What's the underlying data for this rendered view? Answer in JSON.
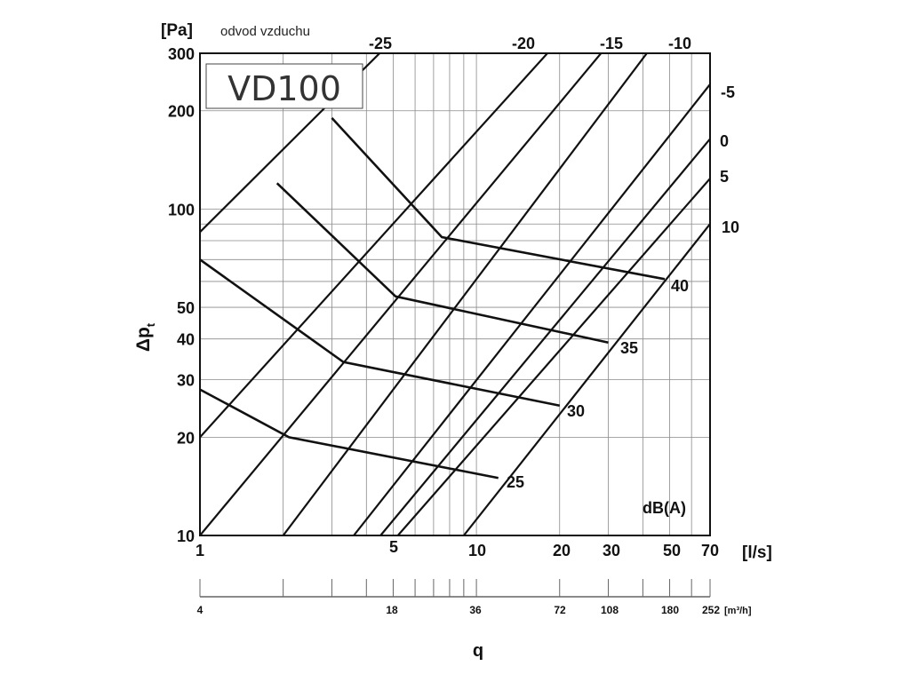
{
  "subtitle": "odvod vzduchu",
  "model": "VD100",
  "y_unit": "[Pa]",
  "y_label_main": "Δp",
  "y_label_sub": "t",
  "x_unit_ls": "[l/s]",
  "x_unit_m3h": "[m³/h]",
  "x_label": "q",
  "db_unit": "dB(A)",
  "chart_data": {
    "type": "line",
    "x_scale": "log",
    "y_scale": "log",
    "xlim": [
      1,
      70
    ],
    "ylim": [
      10,
      300
    ],
    "grid": true,
    "x_ticks_ls": [
      "1",
      "5",
      "10",
      "20",
      "30",
      "50",
      "70"
    ],
    "x_ticks_m3h": [
      "4",
      "18",
      "36",
      "72",
      "108",
      "180",
      "252"
    ],
    "y_ticks": [
      "10",
      "20",
      "30",
      "40",
      "50",
      "100",
      "200",
      "300"
    ],
    "sound_lines": [
      {
        "label": "25",
        "points": [
          [
            1,
            28
          ],
          [
            2.1,
            20
          ],
          [
            12,
            15
          ]
        ]
      },
      {
        "label": "30",
        "points": [
          [
            1,
            70
          ],
          [
            3.3,
            34
          ],
          [
            20,
            25
          ]
        ]
      },
      {
        "label": "35",
        "points": [
          [
            1.9,
            120
          ],
          [
            5.1,
            54
          ],
          [
            30,
            39
          ]
        ]
      },
      {
        "label": "40",
        "points": [
          [
            3,
            190
          ],
          [
            7.5,
            82
          ],
          [
            48,
            61
          ]
        ]
      }
    ],
    "correction_lines": [
      {
        "label": "-25",
        "points": [
          [
            1,
            85
          ],
          [
            5,
            330
          ]
        ]
      },
      {
        "label": "-20",
        "points": [
          [
            1,
            20
          ],
          [
            20,
            330
          ]
        ]
      },
      {
        "label": "-15",
        "points": [
          [
            1,
            10
          ],
          [
            31,
            330
          ]
        ]
      },
      {
        "label": "-10",
        "points": [
          [
            2,
            10
          ],
          [
            45,
            330
          ]
        ]
      },
      {
        "label": "-5",
        "points": [
          [
            3.6,
            10
          ],
          [
            70,
            241
          ]
        ]
      },
      {
        "label": "0",
        "points": [
          [
            4.5,
            10
          ],
          [
            70,
            164
          ]
        ]
      },
      {
        "label": "5",
        "points": [
          [
            5.2,
            10
          ],
          [
            70,
            124
          ]
        ]
      },
      {
        "label": "10",
        "points": [
          [
            9,
            10
          ],
          [
            70,
            90
          ]
        ]
      }
    ]
  }
}
